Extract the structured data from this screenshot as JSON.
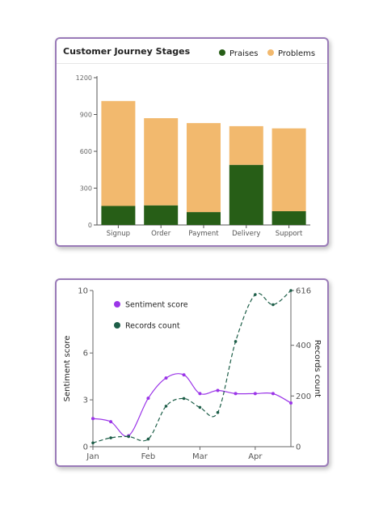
{
  "chart_data": [
    {
      "type": "bar",
      "stacked": true,
      "title": "Customer Journey Stages",
      "categories": [
        "Signup",
        "Order",
        "Payment",
        "Delivery",
        "Support"
      ],
      "series": [
        {
          "name": "Praises",
          "values": [
            155,
            160,
            105,
            490,
            112
          ],
          "color": "#275e17"
        },
        {
          "name": "Problems",
          "values": [
            855,
            710,
            725,
            315,
            675
          ],
          "color": "#f2b96e"
        }
      ],
      "y_ticks": [
        "0",
        "300",
        "600",
        "900",
        "1200"
      ],
      "ylim": [
        0,
        1200
      ],
      "legend_position": "top-right",
      "grid": false
    },
    {
      "type": "line",
      "x_ticks": [
        "Jan",
        "Feb",
        "Mar",
        "Apr"
      ],
      "y_left_label": "Sentiment score",
      "y_right_label": "Records count",
      "y_left_ticks": [
        "0",
        "3",
        "6",
        "10"
      ],
      "y_right_ticks": [
        "0",
        "200",
        "400",
        "616"
      ],
      "ylim_left": [
        0,
        10
      ],
      "ylim_right": [
        0,
        616
      ],
      "legend_position": "top-left",
      "grid": false,
      "series": [
        {
          "name": "Sentiment score",
          "axis": "left",
          "style": "solid",
          "color": "#9b35e8",
          "points": [
            [
              "2024-01-01",
              1.8
            ],
            [
              "2024-01-11",
              1.6
            ],
            [
              "2024-01-21",
              0.7
            ],
            [
              "2024-02-01",
              3.1
            ],
            [
              "2024-02-11",
              4.4
            ],
            [
              "2024-02-21",
              4.6
            ],
            [
              "2024-03-01",
              3.4
            ],
            [
              "2024-03-11",
              3.6
            ],
            [
              "2024-03-21",
              3.4
            ],
            [
              "2024-04-01",
              3.4
            ],
            [
              "2024-04-11",
              3.4
            ],
            [
              "2024-04-21",
              2.8
            ]
          ]
        },
        {
          "name": "Records count",
          "axis": "right",
          "style": "dashed",
          "color": "#1d5e48",
          "points": [
            [
              "2024-01-01",
              15
            ],
            [
              "2024-01-11",
              35
            ],
            [
              "2024-01-21",
              40
            ],
            [
              "2024-02-01",
              30
            ],
            [
              "2024-02-11",
              160
            ],
            [
              "2024-02-21",
              190
            ],
            [
              "2024-03-01",
              155
            ],
            [
              "2024-03-11",
              135
            ],
            [
              "2024-03-21",
              415
            ],
            [
              "2024-04-01",
              600
            ],
            [
              "2024-04-11",
              560
            ],
            [
              "2024-04-21",
              616
            ]
          ]
        }
      ]
    }
  ]
}
